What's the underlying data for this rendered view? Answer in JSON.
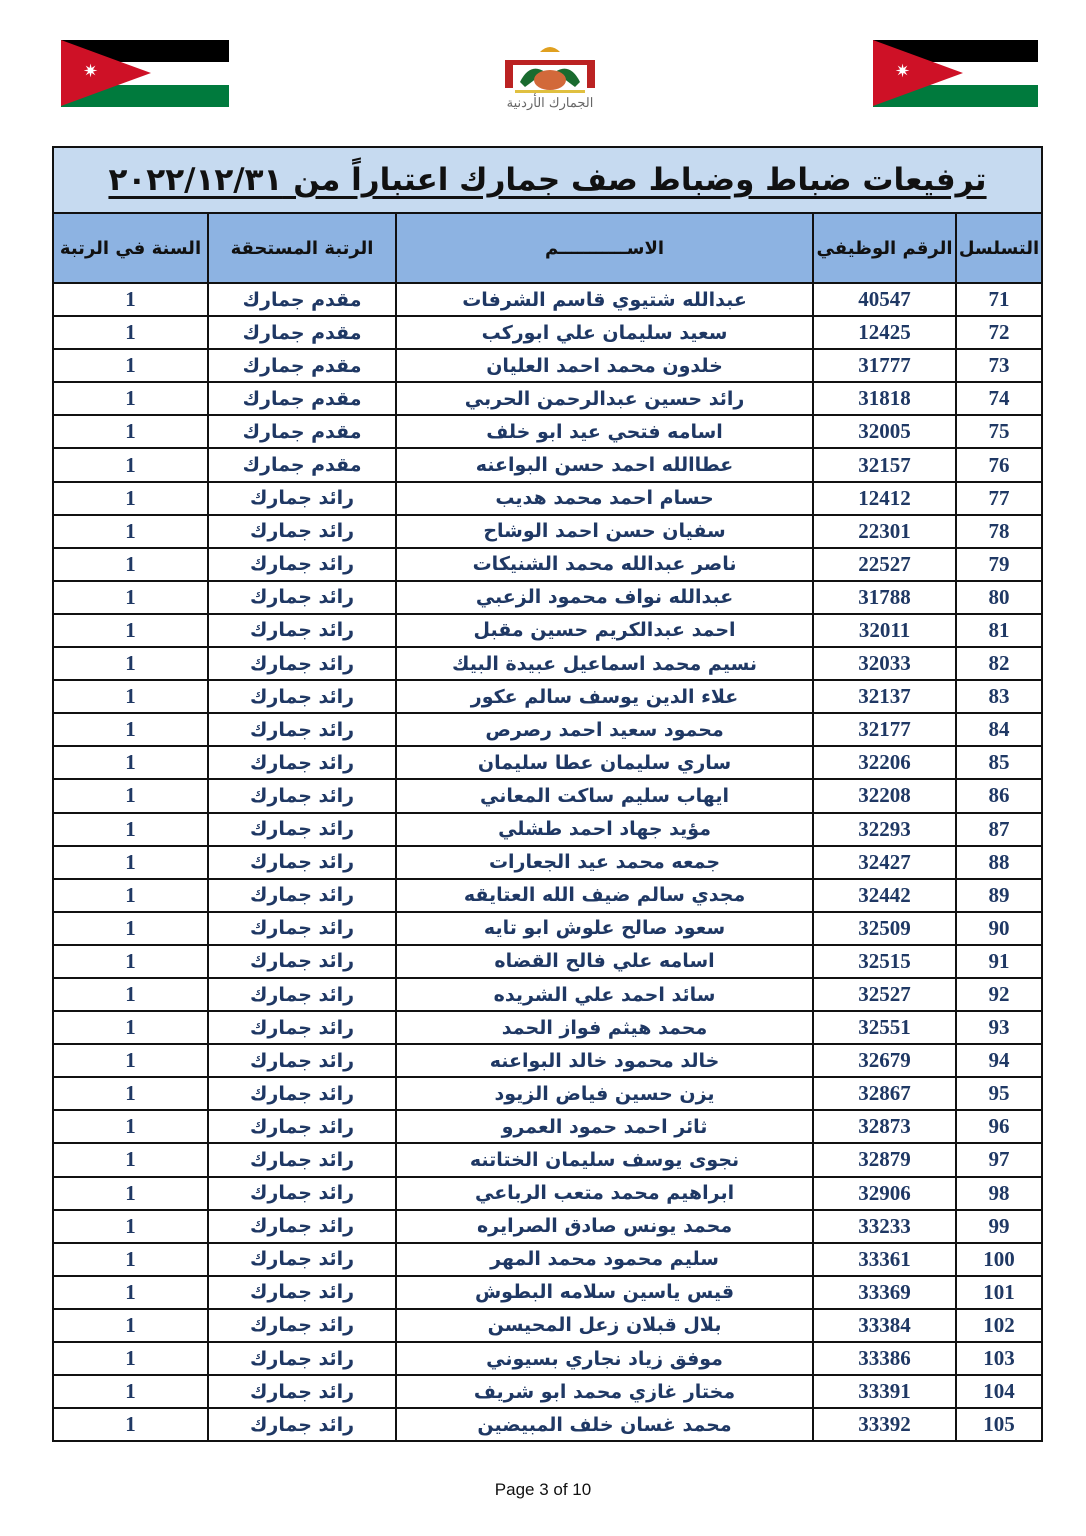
{
  "header": {
    "emblem_text": "الجمارك الأردنية",
    "flag_colors": {
      "black": "#000000",
      "white": "#ffffff",
      "green": "#007a3d",
      "red": "#ce1126"
    }
  },
  "table": {
    "title": "ترفيعات ضباط وضباط صف جمارك اعتباراً من ٢٠٢٢/١٢/٣١",
    "columns": [
      "التسلسل",
      "الرقم الوظيفي",
      "الاســـــــــــم",
      "الرتبة المستحقة",
      "السنة في الرتبة"
    ],
    "rows": [
      [
        "71",
        "40547",
        "عبدالله شتيوي قاسم الشرفات",
        "مقدم جمارك",
        "1"
      ],
      [
        "72",
        "12425",
        "سعيد سليمان علي ابوركب",
        "مقدم جمارك",
        "1"
      ],
      [
        "73",
        "31777",
        "خلدون محمد احمد العليان",
        "مقدم جمارك",
        "1"
      ],
      [
        "74",
        "31818",
        "رائد حسين عبدالرحمن الحربي",
        "مقدم جمارك",
        "1"
      ],
      [
        "75",
        "32005",
        "اسامه فتحي عيد ابو خلف",
        "مقدم جمارك",
        "1"
      ],
      [
        "76",
        "32157",
        "عطاالله احمد حسن البواعنه",
        "مقدم جمارك",
        "1"
      ],
      [
        "77",
        "12412",
        "حسام احمد محمد هديب",
        "رائد جمارك",
        "1"
      ],
      [
        "78",
        "22301",
        "سفيان حسن احمد الوشاح",
        "رائد جمارك",
        "1"
      ],
      [
        "79",
        "22527",
        "ناصر عبدالله محمد الشنيكات",
        "رائد جمارك",
        "1"
      ],
      [
        "80",
        "31788",
        "عبدالله نواف محمود الزعبي",
        "رائد جمارك",
        "1"
      ],
      [
        "81",
        "32011",
        "احمد عبدالكريم حسين مقبل",
        "رائد جمارك",
        "1"
      ],
      [
        "82",
        "32033",
        "نسيم محمد اسماعيل عبيدة البيك",
        "رائد جمارك",
        "1"
      ],
      [
        "83",
        "32137",
        "علاء الدين يوسف سالم عكور",
        "رائد جمارك",
        "1"
      ],
      [
        "84",
        "32177",
        "محمود سعيد احمد رصرص",
        "رائد جمارك",
        "1"
      ],
      [
        "85",
        "32206",
        "ساري سليمان عطا سليمان",
        "رائد جمارك",
        "1"
      ],
      [
        "86",
        "32208",
        "ايهاب سليم ساكت المعاني",
        "رائد جمارك",
        "1"
      ],
      [
        "87",
        "32293",
        "مؤيد جهاد احمد طشلي",
        "رائد جمارك",
        "1"
      ],
      [
        "88",
        "32427",
        "جمعه محمد عيد الجعارات",
        "رائد جمارك",
        "1"
      ],
      [
        "89",
        "32442",
        "مجدي سالم ضيف الله العتايقه",
        "رائد جمارك",
        "1"
      ],
      [
        "90",
        "32509",
        "سعود صالح علوش ابو تايه",
        "رائد جمارك",
        "1"
      ],
      [
        "91",
        "32515",
        "اسامه علي فالح القضاه",
        "رائد جمارك",
        "1"
      ],
      [
        "92",
        "32527",
        "سائد احمد علي الشريده",
        "رائد جمارك",
        "1"
      ],
      [
        "93",
        "32551",
        "محمد هيثم فواز الحمد",
        "رائد جمارك",
        "1"
      ],
      [
        "94",
        "32679",
        "خالد محمود خالد البواعنه",
        "رائد جمارك",
        "1"
      ],
      [
        "95",
        "32867",
        "يزن حسين فياض الزيود",
        "رائد جمارك",
        "1"
      ],
      [
        "96",
        "32873",
        "ثائر احمد حمود العمرو",
        "رائد جمارك",
        "1"
      ],
      [
        "97",
        "32879",
        "نجوى يوسف سليمان الختاتنه",
        "رائد جمارك",
        "1"
      ],
      [
        "98",
        "32906",
        "ابراهيم محمد متعب الرباعي",
        "رائد جمارك",
        "1"
      ],
      [
        "99",
        "33233",
        "محمد يونس صادق الصرايره",
        "رائد جمارك",
        "1"
      ],
      [
        "100",
        "33361",
        "سليم محمود محمد المهر",
        "رائد جمارك",
        "1"
      ],
      [
        "101",
        "33369",
        "قيس ياسين سلامه البطوش",
        "رائد جمارك",
        "1"
      ],
      [
        "102",
        "33384",
        "بلال قبلان زعل المحيسن",
        "رائد جمارك",
        "1"
      ],
      [
        "103",
        "33386",
        "موفق زياد نجاري بسيوني",
        "رائد جمارك",
        "1"
      ],
      [
        "104",
        "33391",
        "مختار غازي محمد ابو شريف",
        "رائد جمارك",
        "1"
      ],
      [
        "105",
        "33392",
        "محمد غسان خلف المبيضين",
        "رائد جمارك",
        "1"
      ]
    ]
  },
  "footer": {
    "page_label": "Page 3 of 10"
  }
}
